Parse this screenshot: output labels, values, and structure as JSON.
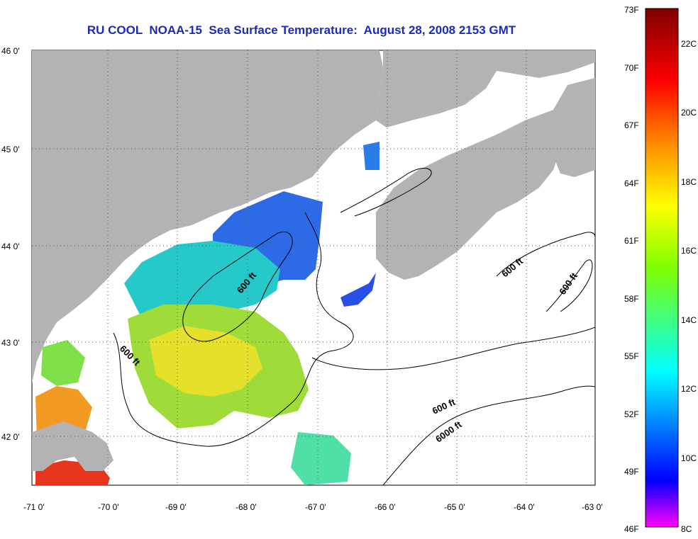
{
  "title": "RU COOL  NOAA-15  Sea Surface Temperature:  August 28, 2008 2153 GMT",
  "lat_ticks": [
    "46 0'",
    "45 0'",
    "44 0'",
    "43 0'",
    "42 0'"
  ],
  "lon_ticks": [
    "-71 0'",
    "-70 0'",
    "-69 0'",
    "-68 0'",
    "-67 0'",
    "-66 0'",
    "-65 0'",
    "-64 0'",
    "-63 0'"
  ],
  "contour_labels": [
    "600 ft",
    "600 ft",
    "600 ft",
    "600 ft",
    "600 ft",
    "6000 ft"
  ],
  "colorbar": {
    "fahrenheit": [
      "73F",
      "70F",
      "67F",
      "64F",
      "61F",
      "58F",
      "55F",
      "52F",
      "49F",
      "46F"
    ],
    "celsius": [
      "22C",
      "20C",
      "18C",
      "16C",
      "14C",
      "12C",
      "10C",
      "8C"
    ]
  },
  "colors": {
    "land": "#b3b3b3",
    "title": "#1c2ab8"
  }
}
